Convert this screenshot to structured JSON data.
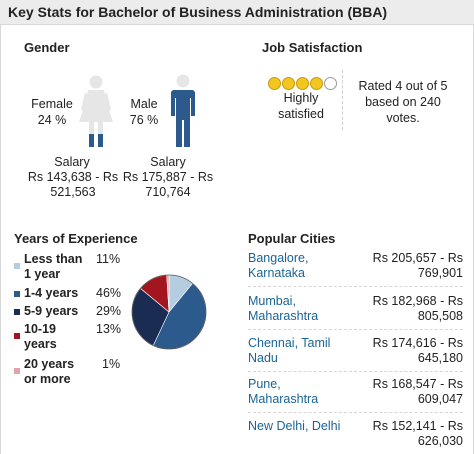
{
  "header": {
    "title": "Key Stats for Bachelor of Business Administration (BBA)"
  },
  "gender": {
    "heading": "Gender",
    "female": {
      "label": "Female",
      "percent": "24 %",
      "salary_label": "Salary",
      "salary_line1": "Rs 143,638 - Rs",
      "salary_line2": "521,563"
    },
    "male": {
      "label": "Male",
      "percent": "76 %",
      "salary_label": "Salary",
      "salary_line1": "Rs 175,887 - Rs",
      "salary_line2": "710,764"
    }
  },
  "job_satisfaction": {
    "heading": "Job Satisfaction",
    "rating": 4,
    "max": 5,
    "status_line1": "Highly",
    "status_line2": "satisfied",
    "rated_line1": "Rated 4 out of 5",
    "rated_line2": "based on 240",
    "rated_line3": "votes."
  },
  "experience": {
    "heading": "Years of Experience",
    "items": [
      {
        "line1": "Less than",
        "line2": "1 year",
        "percent": "11%",
        "color": "#b4cde0"
      },
      {
        "line1": "1-4 years",
        "line2": "",
        "percent": "46%",
        "color": "#2c5a8c"
      },
      {
        "line1": "5-9 years",
        "line2": "",
        "percent": "29%",
        "color": "#1a2c52"
      },
      {
        "line1": "10-19",
        "line2": "years",
        "percent": "13%",
        "color": "#a31620"
      },
      {
        "line1": "20 years",
        "line2": "or more",
        "percent": "1%",
        "color": "#e3a3aa"
      }
    ]
  },
  "cities": {
    "heading": "Popular Cities",
    "items": [
      {
        "name_line1": "Bangalore,",
        "name_line2": "Karnataka",
        "salary_line1": "Rs 205,657 - Rs",
        "salary_line2": "769,901"
      },
      {
        "name_line1": "Mumbai,",
        "name_line2": "Maharashtra",
        "salary_line1": "Rs 182,968 - Rs",
        "salary_line2": "805,508"
      },
      {
        "name_line1": "Chennai, Tamil",
        "name_line2": "Nadu",
        "salary_line1": "Rs 174,616 - Rs",
        "salary_line2": "645,180"
      },
      {
        "name_line1": "Pune,",
        "name_line2": "Maharashtra",
        "salary_line1": "Rs 168,547 - Rs",
        "salary_line2": "609,047"
      },
      {
        "name_line1": "New Delhi, Delhi",
        "name_line2": "",
        "salary_line1": "Rs 152,141 - Rs",
        "salary_line2": "626,030"
      }
    ]
  },
  "chart_data": {
    "type": "pie",
    "categories": [
      "Less than 1 year",
      "1-4 years",
      "5-9 years",
      "10-19 years",
      "20 years or more"
    ],
    "values": [
      11,
      46,
      29,
      13,
      1
    ],
    "colors": [
      "#b4cde0",
      "#2c5a8c",
      "#1a2c52",
      "#a31620",
      "#e3a3aa"
    ]
  }
}
